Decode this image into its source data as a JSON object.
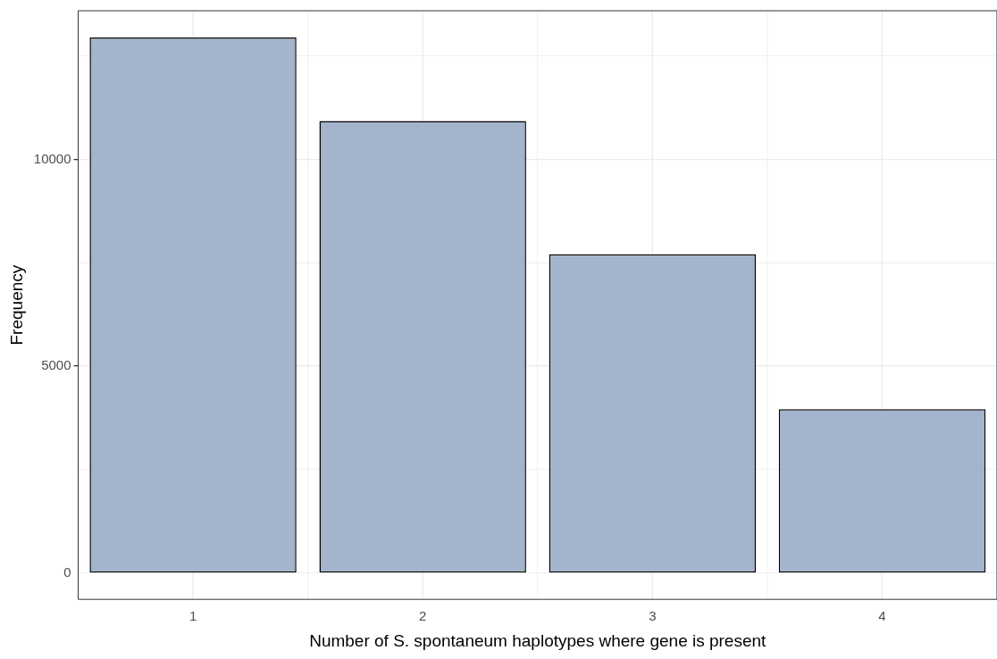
{
  "chart_data": {
    "type": "bar",
    "xlabel": "Number of S. spontaneum haplotypes where gene is present",
    "ylabel": "Frequency",
    "categories": [
      "1",
      "2",
      "3",
      "4"
    ],
    "values": [
      12950,
      10930,
      7710,
      3960
    ],
    "color": "#a3b4cc",
    "ylim": [
      -640,
      13600
    ],
    "yticks": [
      0,
      {
        "value": 2500,
        "label": null
      },
      5000,
      {
        "value": 7500,
        "label": null
      },
      10000,
      {
        "value": 12500,
        "label": null
      }
    ],
    "grid": true,
    "legend": false
  }
}
